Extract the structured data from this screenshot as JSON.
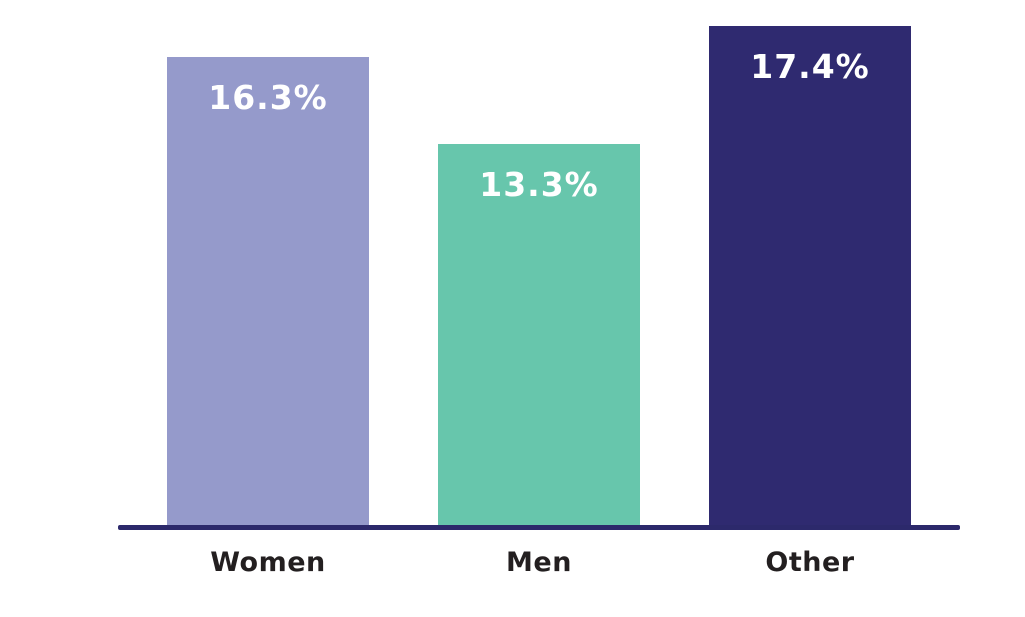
{
  "chart_data": {
    "type": "bar",
    "title": "",
    "xlabel": "",
    "ylabel": "",
    "categories": [
      "Women",
      "Men",
      "Other"
    ],
    "values": [
      16.3,
      13.3,
      17.4
    ],
    "value_labels": [
      "16.3%",
      "13.3%",
      "17.4%"
    ],
    "series_colors": [
      "#959ACB",
      "#67C6AC",
      "#2F2A70"
    ],
    "axis_line_color": "#2C296B",
    "category_label_color": "#231F20",
    "value_label_color": "#FFFFFF",
    "background_color": "#FFFFFF",
    "ylim": [
      0,
      18.3
    ],
    "grid": false,
    "legend": false
  }
}
